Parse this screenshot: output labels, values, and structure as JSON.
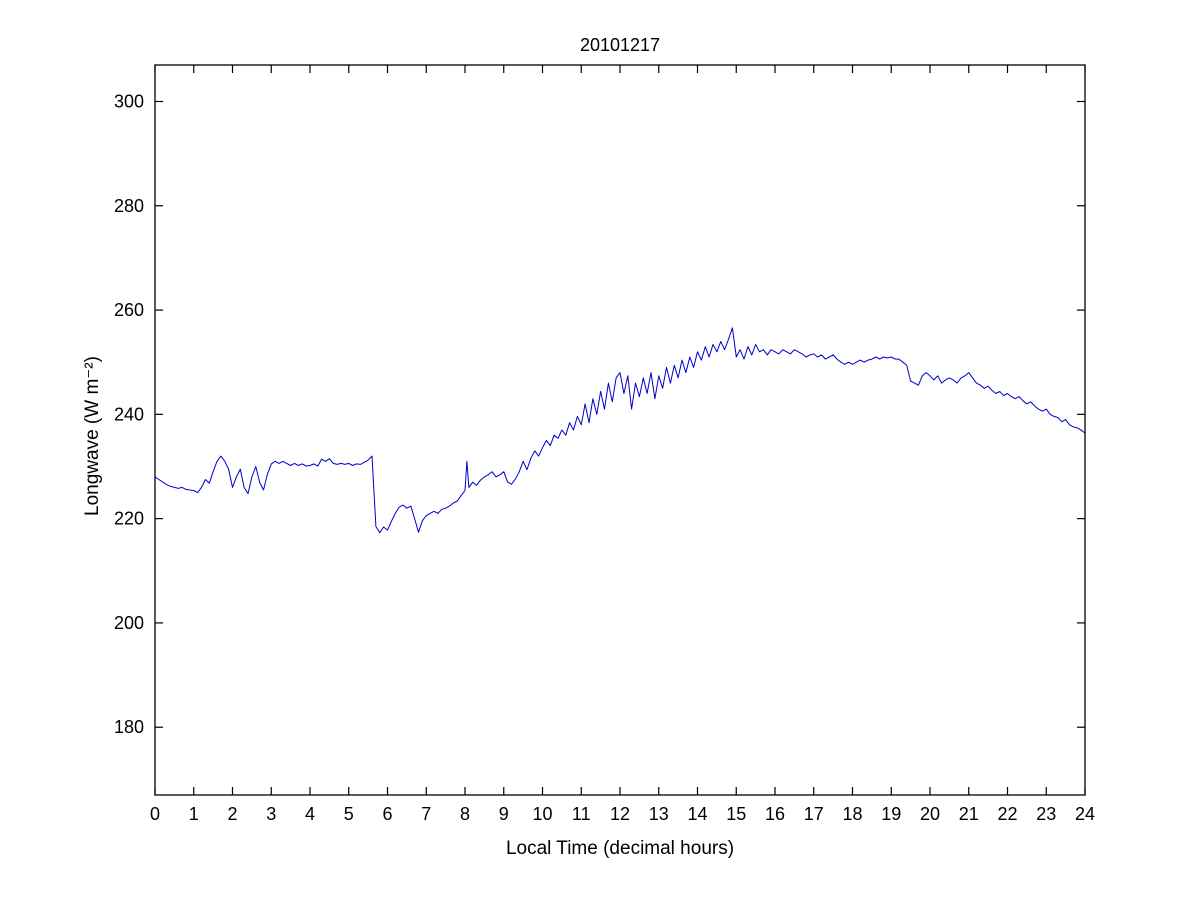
{
  "figure": {
    "background": "#ffffff"
  },
  "chart_data": {
    "type": "line",
    "title": "20101217",
    "xlabel": "Local Time (decimal hours)",
    "ylabel": "Longwave (W m⁻²)",
    "xlim": [
      0,
      24
    ],
    "ylim": [
      167,
      307
    ],
    "x_ticks": [
      0,
      1,
      2,
      3,
      4,
      5,
      6,
      7,
      8,
      9,
      10,
      11,
      12,
      13,
      14,
      15,
      16,
      17,
      18,
      19,
      20,
      21,
      22,
      23,
      24
    ],
    "y_ticks": [
      180,
      200,
      220,
      240,
      260,
      280,
      300
    ],
    "grid": false,
    "line_color": "#0000CC",
    "axes_color": "#000000",
    "series": [
      {
        "name": "longwave",
        "points": [
          [
            0.0,
            228
          ],
          [
            0.1,
            227.5
          ],
          [
            0.2,
            227
          ],
          [
            0.3,
            226.5
          ],
          [
            0.4,
            226.2
          ],
          [
            0.5,
            226
          ],
          [
            0.6,
            225.8
          ],
          [
            0.7,
            226
          ],
          [
            0.8,
            225.6
          ],
          [
            0.9,
            225.5
          ],
          [
            1.0,
            225.4
          ],
          [
            1.1,
            225
          ],
          [
            1.2,
            226
          ],
          [
            1.3,
            227.5
          ],
          [
            1.4,
            226.8
          ],
          [
            1.5,
            229
          ],
          [
            1.6,
            231
          ],
          [
            1.7,
            232
          ],
          [
            1.8,
            231
          ],
          [
            1.9,
            229.5
          ],
          [
            2.0,
            226
          ],
          [
            2.1,
            228
          ],
          [
            2.2,
            229.5
          ],
          [
            2.3,
            226
          ],
          [
            2.4,
            224.8
          ],
          [
            2.5,
            228
          ],
          [
            2.6,
            230
          ],
          [
            2.7,
            227
          ],
          [
            2.8,
            225.5
          ],
          [
            2.9,
            228.5
          ],
          [
            3.0,
            230.5
          ],
          [
            3.1,
            231
          ],
          [
            3.2,
            230.6
          ],
          [
            3.3,
            231
          ],
          [
            3.4,
            230.6
          ],
          [
            3.5,
            230.2
          ],
          [
            3.6,
            230.6
          ],
          [
            3.7,
            230.2
          ],
          [
            3.8,
            230.5
          ],
          [
            3.9,
            230.1
          ],
          [
            4.0,
            230.2
          ],
          [
            4.1,
            230.5
          ],
          [
            4.2,
            230.1
          ],
          [
            4.3,
            231.4
          ],
          [
            4.4,
            231
          ],
          [
            4.5,
            231.5
          ],
          [
            4.6,
            230.6
          ],
          [
            4.7,
            230.4
          ],
          [
            4.8,
            230.6
          ],
          [
            4.9,
            230.4
          ],
          [
            5.0,
            230.6
          ],
          [
            5.1,
            230.2
          ],
          [
            5.2,
            230.5
          ],
          [
            5.3,
            230.4
          ],
          [
            5.4,
            230.8
          ],
          [
            5.5,
            231.2
          ],
          [
            5.6,
            232
          ],
          [
            5.7,
            218.5
          ],
          [
            5.8,
            217.3
          ],
          [
            5.9,
            218.4
          ],
          [
            6.0,
            217.8
          ],
          [
            6.1,
            219.5
          ],
          [
            6.2,
            221
          ],
          [
            6.3,
            222.2
          ],
          [
            6.4,
            222.6
          ],
          [
            6.5,
            222
          ],
          [
            6.6,
            222.4
          ],
          [
            6.7,
            220
          ],
          [
            6.8,
            217.4
          ],
          [
            6.9,
            219.6
          ],
          [
            7.0,
            220.6
          ],
          [
            7.1,
            221
          ],
          [
            7.2,
            221.4
          ],
          [
            7.3,
            221
          ],
          [
            7.4,
            221.8
          ],
          [
            7.5,
            222
          ],
          [
            7.6,
            222.4
          ],
          [
            7.7,
            223
          ],
          [
            7.8,
            223.4
          ],
          [
            7.9,
            224.4
          ],
          [
            8.0,
            225.4
          ],
          [
            8.05,
            231
          ],
          [
            8.1,
            226
          ],
          [
            8.2,
            227
          ],
          [
            8.3,
            226.4
          ],
          [
            8.4,
            227.4
          ],
          [
            8.5,
            228
          ],
          [
            8.6,
            228.4
          ],
          [
            8.7,
            229
          ],
          [
            8.8,
            228
          ],
          [
            8.9,
            228.4
          ],
          [
            9.0,
            229
          ],
          [
            9.1,
            227
          ],
          [
            9.2,
            226.6
          ],
          [
            9.3,
            227.6
          ],
          [
            9.4,
            229
          ],
          [
            9.5,
            231
          ],
          [
            9.6,
            229.4
          ],
          [
            9.7,
            231.6
          ],
          [
            9.8,
            233
          ],
          [
            9.9,
            232
          ],
          [
            10.0,
            233.6
          ],
          [
            10.1,
            235
          ],
          [
            10.2,
            234
          ],
          [
            10.3,
            236
          ],
          [
            10.4,
            235.4
          ],
          [
            10.5,
            237
          ],
          [
            10.6,
            236
          ],
          [
            10.7,
            238.4
          ],
          [
            10.8,
            237
          ],
          [
            10.9,
            239.6
          ],
          [
            11.0,
            238
          ],
          [
            11.1,
            242
          ],
          [
            11.2,
            238.4
          ],
          [
            11.3,
            243
          ],
          [
            11.4,
            240
          ],
          [
            11.5,
            244.4
          ],
          [
            11.6,
            241
          ],
          [
            11.7,
            246
          ],
          [
            11.8,
            242.4
          ],
          [
            11.9,
            247
          ],
          [
            12.0,
            248
          ],
          [
            12.1,
            244
          ],
          [
            12.2,
            247.4
          ],
          [
            12.3,
            241
          ],
          [
            12.4,
            246
          ],
          [
            12.5,
            243.4
          ],
          [
            12.6,
            247
          ],
          [
            12.7,
            244
          ],
          [
            12.8,
            248
          ],
          [
            12.9,
            243
          ],
          [
            13.0,
            247.4
          ],
          [
            13.1,
            245
          ],
          [
            13.2,
            249
          ],
          [
            13.3,
            246
          ],
          [
            13.4,
            249.4
          ],
          [
            13.5,
            247
          ],
          [
            13.6,
            250.4
          ],
          [
            13.7,
            248
          ],
          [
            13.8,
            251
          ],
          [
            13.9,
            249
          ],
          [
            14.0,
            252
          ],
          [
            14.1,
            250.4
          ],
          [
            14.2,
            253
          ],
          [
            14.3,
            251
          ],
          [
            14.4,
            253.4
          ],
          [
            14.5,
            252
          ],
          [
            14.6,
            254
          ],
          [
            14.7,
            252.4
          ],
          [
            14.8,
            254.4
          ],
          [
            14.9,
            256.6
          ],
          [
            15.0,
            251
          ],
          [
            15.1,
            252.4
          ],
          [
            15.2,
            250.6
          ],
          [
            15.3,
            253
          ],
          [
            15.4,
            251.4
          ],
          [
            15.5,
            253.4
          ],
          [
            15.6,
            252
          ],
          [
            15.7,
            252.4
          ],
          [
            15.8,
            251.4
          ],
          [
            15.9,
            252.4
          ],
          [
            16.0,
            252
          ],
          [
            16.1,
            251.6
          ],
          [
            16.2,
            252.4
          ],
          [
            16.3,
            252
          ],
          [
            16.4,
            251.6
          ],
          [
            16.5,
            252.4
          ],
          [
            16.6,
            252
          ],
          [
            16.7,
            251.6
          ],
          [
            16.8,
            251
          ],
          [
            16.9,
            251.4
          ],
          [
            17.0,
            251.6
          ],
          [
            17.1,
            251
          ],
          [
            17.2,
            251.4
          ],
          [
            17.3,
            250.6
          ],
          [
            17.4,
            251
          ],
          [
            17.5,
            251.4
          ],
          [
            17.6,
            250.6
          ],
          [
            17.7,
            250
          ],
          [
            17.8,
            249.6
          ],
          [
            17.9,
            250
          ],
          [
            18.0,
            249.6
          ],
          [
            18.1,
            250
          ],
          [
            18.2,
            250.4
          ],
          [
            18.3,
            250
          ],
          [
            18.4,
            250.4
          ],
          [
            18.5,
            250.6
          ],
          [
            18.6,
            251
          ],
          [
            18.7,
            250.6
          ],
          [
            18.8,
            251
          ],
          [
            18.9,
            250.8
          ],
          [
            19.0,
            251
          ],
          [
            19.1,
            250.6
          ],
          [
            19.2,
            250.6
          ],
          [
            19.3,
            250
          ],
          [
            19.4,
            249.4
          ],
          [
            19.5,
            246.4
          ],
          [
            19.6,
            246
          ],
          [
            19.7,
            245.6
          ],
          [
            19.8,
            247.4
          ],
          [
            19.9,
            248
          ],
          [
            20.0,
            247.4
          ],
          [
            20.1,
            246.6
          ],
          [
            20.2,
            247.4
          ],
          [
            20.3,
            246
          ],
          [
            20.4,
            246.6
          ],
          [
            20.5,
            247
          ],
          [
            20.6,
            246.6
          ],
          [
            20.7,
            246
          ],
          [
            20.8,
            247
          ],
          [
            20.9,
            247.4
          ],
          [
            21.0,
            248
          ],
          [
            21.1,
            247
          ],
          [
            21.2,
            246
          ],
          [
            21.3,
            245.6
          ],
          [
            21.4,
            245
          ],
          [
            21.5,
            245.4
          ],
          [
            21.6,
            244.6
          ],
          [
            21.7,
            244
          ],
          [
            21.8,
            244.4
          ],
          [
            21.9,
            243.6
          ],
          [
            22.0,
            244
          ],
          [
            22.1,
            243.4
          ],
          [
            22.2,
            243
          ],
          [
            22.3,
            243.4
          ],
          [
            22.4,
            242.6
          ],
          [
            22.5,
            242
          ],
          [
            22.6,
            242.4
          ],
          [
            22.7,
            241.6
          ],
          [
            22.8,
            241
          ],
          [
            22.9,
            240.6
          ],
          [
            23.0,
            241
          ],
          [
            23.1,
            240
          ],
          [
            23.2,
            239.6
          ],
          [
            23.3,
            239.4
          ],
          [
            23.4,
            238.6
          ],
          [
            23.5,
            239
          ],
          [
            23.6,
            238
          ],
          [
            23.7,
            237.6
          ],
          [
            23.8,
            237.4
          ],
          [
            23.9,
            237
          ],
          [
            24.0,
            236.4
          ]
        ]
      }
    ]
  }
}
